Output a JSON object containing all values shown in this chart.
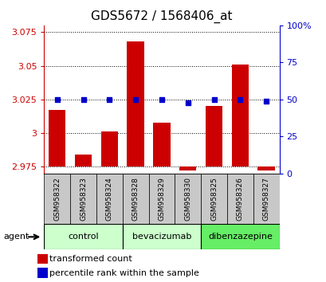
{
  "title": "GDS5672 / 1568406_at",
  "samples": [
    "GSM958322",
    "GSM958323",
    "GSM958324",
    "GSM958328",
    "GSM958329",
    "GSM958330",
    "GSM958325",
    "GSM958326",
    "GSM958327"
  ],
  "transformed_counts": [
    3.017,
    2.984,
    3.001,
    3.068,
    3.008,
    2.972,
    3.02,
    3.051,
    2.972
  ],
  "percentile_ranks": [
    50,
    50,
    50,
    50,
    50,
    48,
    50,
    50,
    49
  ],
  "baseline": 2.975,
  "ylim_left": [
    2.97,
    3.08
  ],
  "ylim_right": [
    0,
    100
  ],
  "yticks_left": [
    2.975,
    3.0,
    3.025,
    3.05,
    3.075
  ],
  "yticks_right": [
    0,
    25,
    50,
    75,
    100
  ],
  "ytick_labels_left": [
    "2.975",
    "3",
    "3.025",
    "3.05",
    "3.075"
  ],
  "ytick_labels_right": [
    "0",
    "25",
    "50",
    "75",
    "100%"
  ],
  "groups": [
    {
      "label": "control",
      "indices": [
        0,
        1,
        2
      ],
      "color": "#ccffcc"
    },
    {
      "label": "bevacizumab",
      "indices": [
        3,
        4,
        5
      ],
      "color": "#ccffcc"
    },
    {
      "label": "dibenzazepine",
      "indices": [
        6,
        7,
        8
      ],
      "color": "#66ee66"
    }
  ],
  "bar_color": "#cc0000",
  "dot_color": "#0000cc",
  "bar_width": 0.65,
  "grid_color": "#000000",
  "bg_color": "#ffffff",
  "left_tick_color": "#cc0000",
  "right_tick_color": "#0000cc",
  "title_fontsize": 11,
  "tick_fontsize": 8,
  "label_fontsize": 8,
  "grey_color": "#c8c8c8"
}
